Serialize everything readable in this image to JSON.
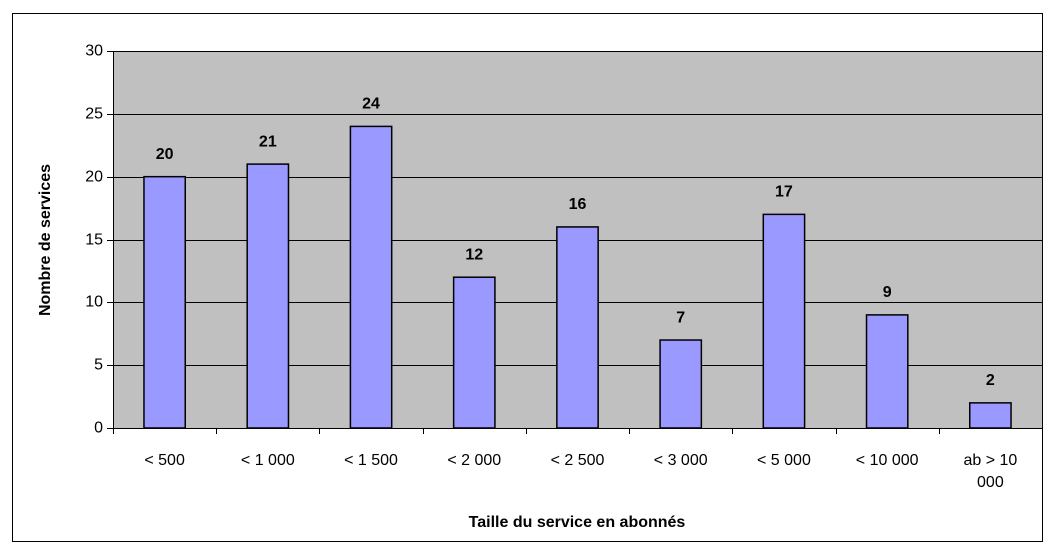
{
  "chart_data": {
    "type": "bar",
    "categories": [
      "< 500",
      "< 1 000",
      "< 1 500",
      "< 2 000",
      "< 2 500",
      "< 3 000",
      "< 5 000",
      "< 10 000",
      "ab > 10 000"
    ],
    "values": [
      20,
      21,
      24,
      12,
      16,
      7,
      17,
      9,
      2
    ],
    "color": "#9999ff",
    "xlabel": "Taille du service en abonnés",
    "ylabel": "Nombre de services",
    "ylim": [
      0,
      30
    ],
    "yticks": [
      0,
      5,
      10,
      15,
      20,
      25,
      30
    ],
    "grid": true
  }
}
